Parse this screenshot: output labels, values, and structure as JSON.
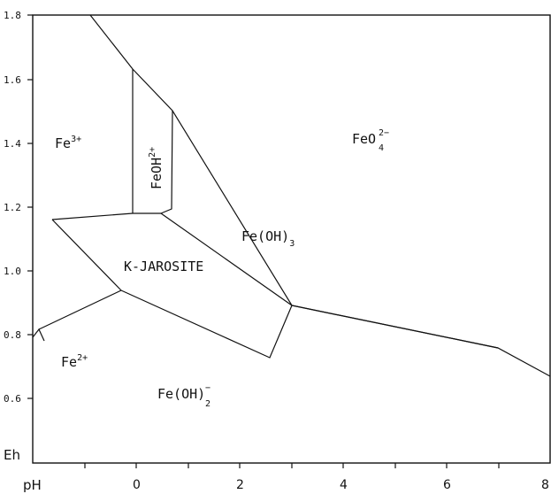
{
  "axis": {
    "y_name": "Eh",
    "x_name": "pH",
    "y_ticks": [
      "1.8",
      "1.6",
      "1.4",
      "1.2",
      "1.0",
      "0.8",
      "0.6"
    ],
    "x_ticks": [
      "0",
      "2",
      "4",
      "6",
      "8"
    ]
  },
  "regions": {
    "fe3": {
      "base": "Fe",
      "sup": "3+"
    },
    "feoh2": {
      "base": "FeOH",
      "sup": "2+"
    },
    "feo4": {
      "base": "FeO",
      "sup": "2−",
      "sub": "4"
    },
    "feoh3": {
      "base": "Fe(OH)",
      "sub": "3"
    },
    "jarosite": {
      "text": "K-JAROSITE"
    },
    "fe2": {
      "base": "Fe",
      "sup": "2+"
    },
    "feoh2minus": {
      "base": "Fe(OH)",
      "sup": "−",
      "sub": "2"
    }
  }
}
